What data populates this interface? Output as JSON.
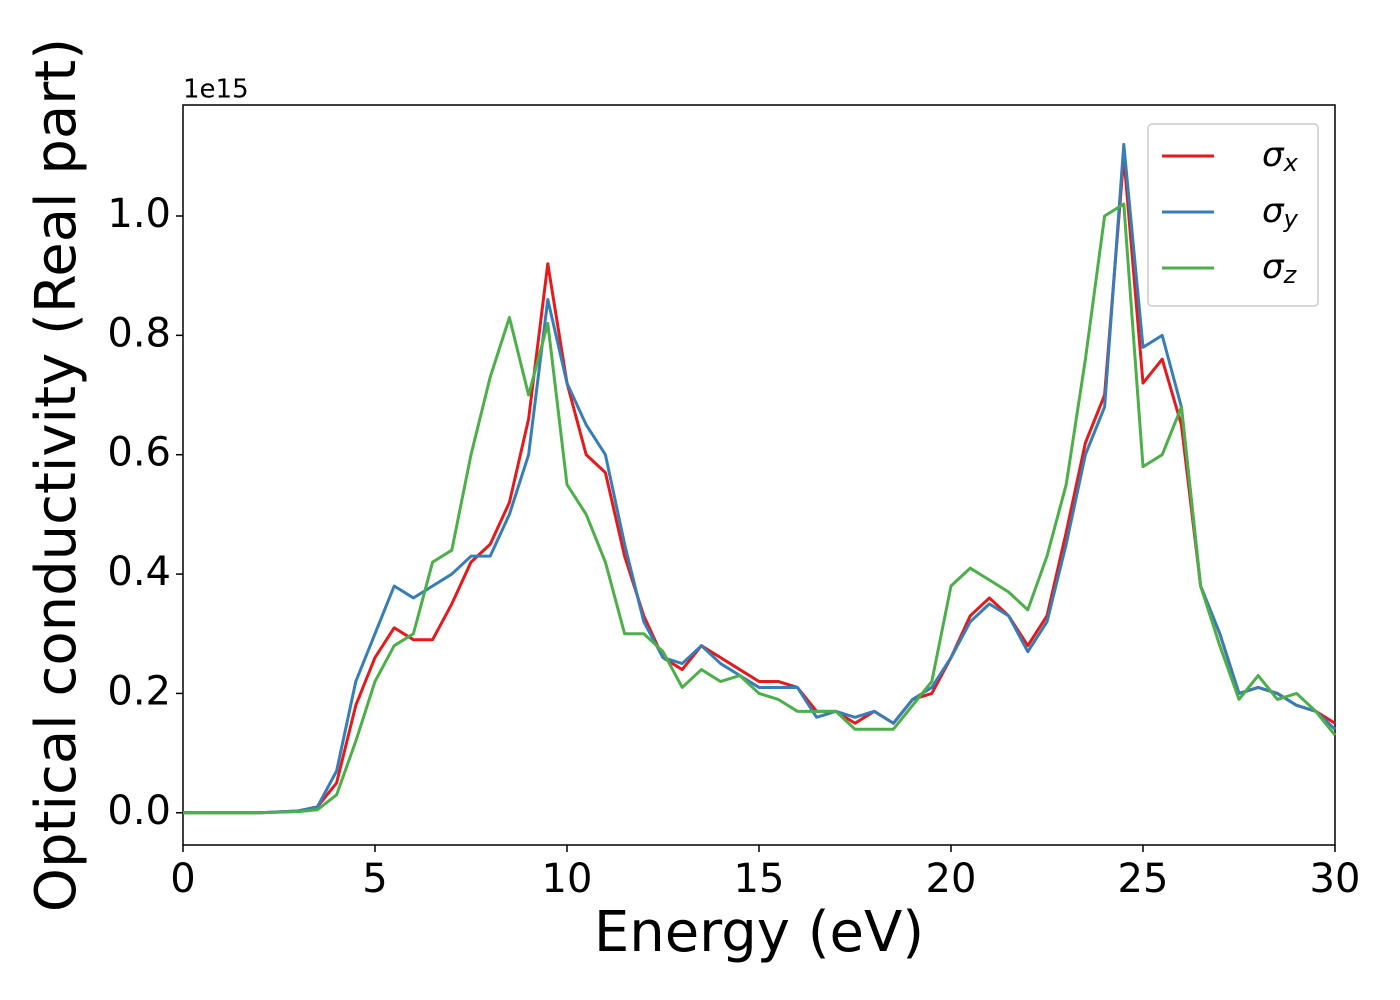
{
  "chart_data": {
    "type": "line",
    "xlabel": "Energy (eV)",
    "ylabel": "Optical conductivity (Real part)",
    "y_offset_label": "1e15",
    "x": [
      0,
      1,
      2,
      3,
      3.5,
      4,
      4.5,
      5,
      5.5,
      6,
      6.5,
      7,
      7.5,
      8,
      8.5,
      9,
      9.5,
      10,
      10.5,
      11,
      11.5,
      12,
      12.5,
      13,
      13.5,
      14,
      14.5,
      15,
      15.5,
      16,
      16.5,
      17,
      17.5,
      18,
      18.5,
      19,
      19.5,
      20,
      20.5,
      21,
      21.5,
      22,
      22.5,
      23,
      23.5,
      24,
      24.5,
      25,
      25.5,
      26,
      26.5,
      27,
      27.5,
      28,
      28.5,
      29,
      29.5,
      30
    ],
    "series": [
      {
        "name": "σx",
        "color": "#e41a1c",
        "values": [
          0,
          0,
          0,
          0.003,
          0.01,
          0.05,
          0.18,
          0.26,
          0.31,
          0.29,
          0.29,
          0.35,
          0.42,
          0.45,
          0.52,
          0.66,
          0.92,
          0.72,
          0.6,
          0.57,
          0.43,
          0.33,
          0.26,
          0.24,
          0.28,
          0.26,
          0.24,
          0.22,
          0.22,
          0.21,
          0.17,
          0.17,
          0.15,
          0.17,
          0.15,
          0.19,
          0.2,
          0.26,
          0.33,
          0.36,
          0.33,
          0.28,
          0.33,
          0.47,
          0.62,
          0.7,
          1.1,
          0.72,
          0.76,
          0.65,
          0.38,
          0.3,
          0.2,
          0.21,
          0.2,
          0.18,
          0.17,
          0.15
        ]
      },
      {
        "name": "σy",
        "color": "#377eb8",
        "values": [
          0,
          0,
          0,
          0.003,
          0.01,
          0.07,
          0.22,
          0.3,
          0.38,
          0.36,
          0.38,
          0.4,
          0.43,
          0.43,
          0.5,
          0.6,
          0.86,
          0.72,
          0.65,
          0.6,
          0.45,
          0.32,
          0.26,
          0.25,
          0.28,
          0.25,
          0.23,
          0.21,
          0.21,
          0.21,
          0.16,
          0.17,
          0.16,
          0.17,
          0.15,
          0.19,
          0.21,
          0.26,
          0.32,
          0.35,
          0.33,
          0.27,
          0.32,
          0.45,
          0.6,
          0.68,
          1.12,
          0.78,
          0.8,
          0.68,
          0.38,
          0.3,
          0.2,
          0.21,
          0.2,
          0.18,
          0.17,
          0.14
        ]
      },
      {
        "name": "σz",
        "color": "#4daf4a",
        "values": [
          0,
          0,
          0,
          0.002,
          0.005,
          0.03,
          0.12,
          0.22,
          0.28,
          0.3,
          0.42,
          0.44,
          0.6,
          0.73,
          0.83,
          0.7,
          0.82,
          0.55,
          0.5,
          0.42,
          0.3,
          0.3,
          0.27,
          0.21,
          0.24,
          0.22,
          0.23,
          0.2,
          0.19,
          0.17,
          0.17,
          0.17,
          0.14,
          0.14,
          0.14,
          0.18,
          0.22,
          0.38,
          0.41,
          0.39,
          0.37,
          0.34,
          0.43,
          0.55,
          0.76,
          1.0,
          1.02,
          0.58,
          0.6,
          0.68,
          0.38,
          0.28,
          0.19,
          0.23,
          0.19,
          0.2,
          0.17,
          0.13
        ]
      }
    ],
    "xlim": [
      0,
      30
    ],
    "xticks": [
      0,
      5,
      10,
      15,
      20,
      25,
      30
    ],
    "ylim": [
      -0.054,
      1.186
    ],
    "yticks": [
      {
        "value": 0,
        "label": "0.0"
      },
      0.2,
      0.4,
      0.6,
      0.8,
      {
        "value": 1,
        "label": "1.0"
      }
    ],
    "legend": "upper right",
    "grid": false
  }
}
